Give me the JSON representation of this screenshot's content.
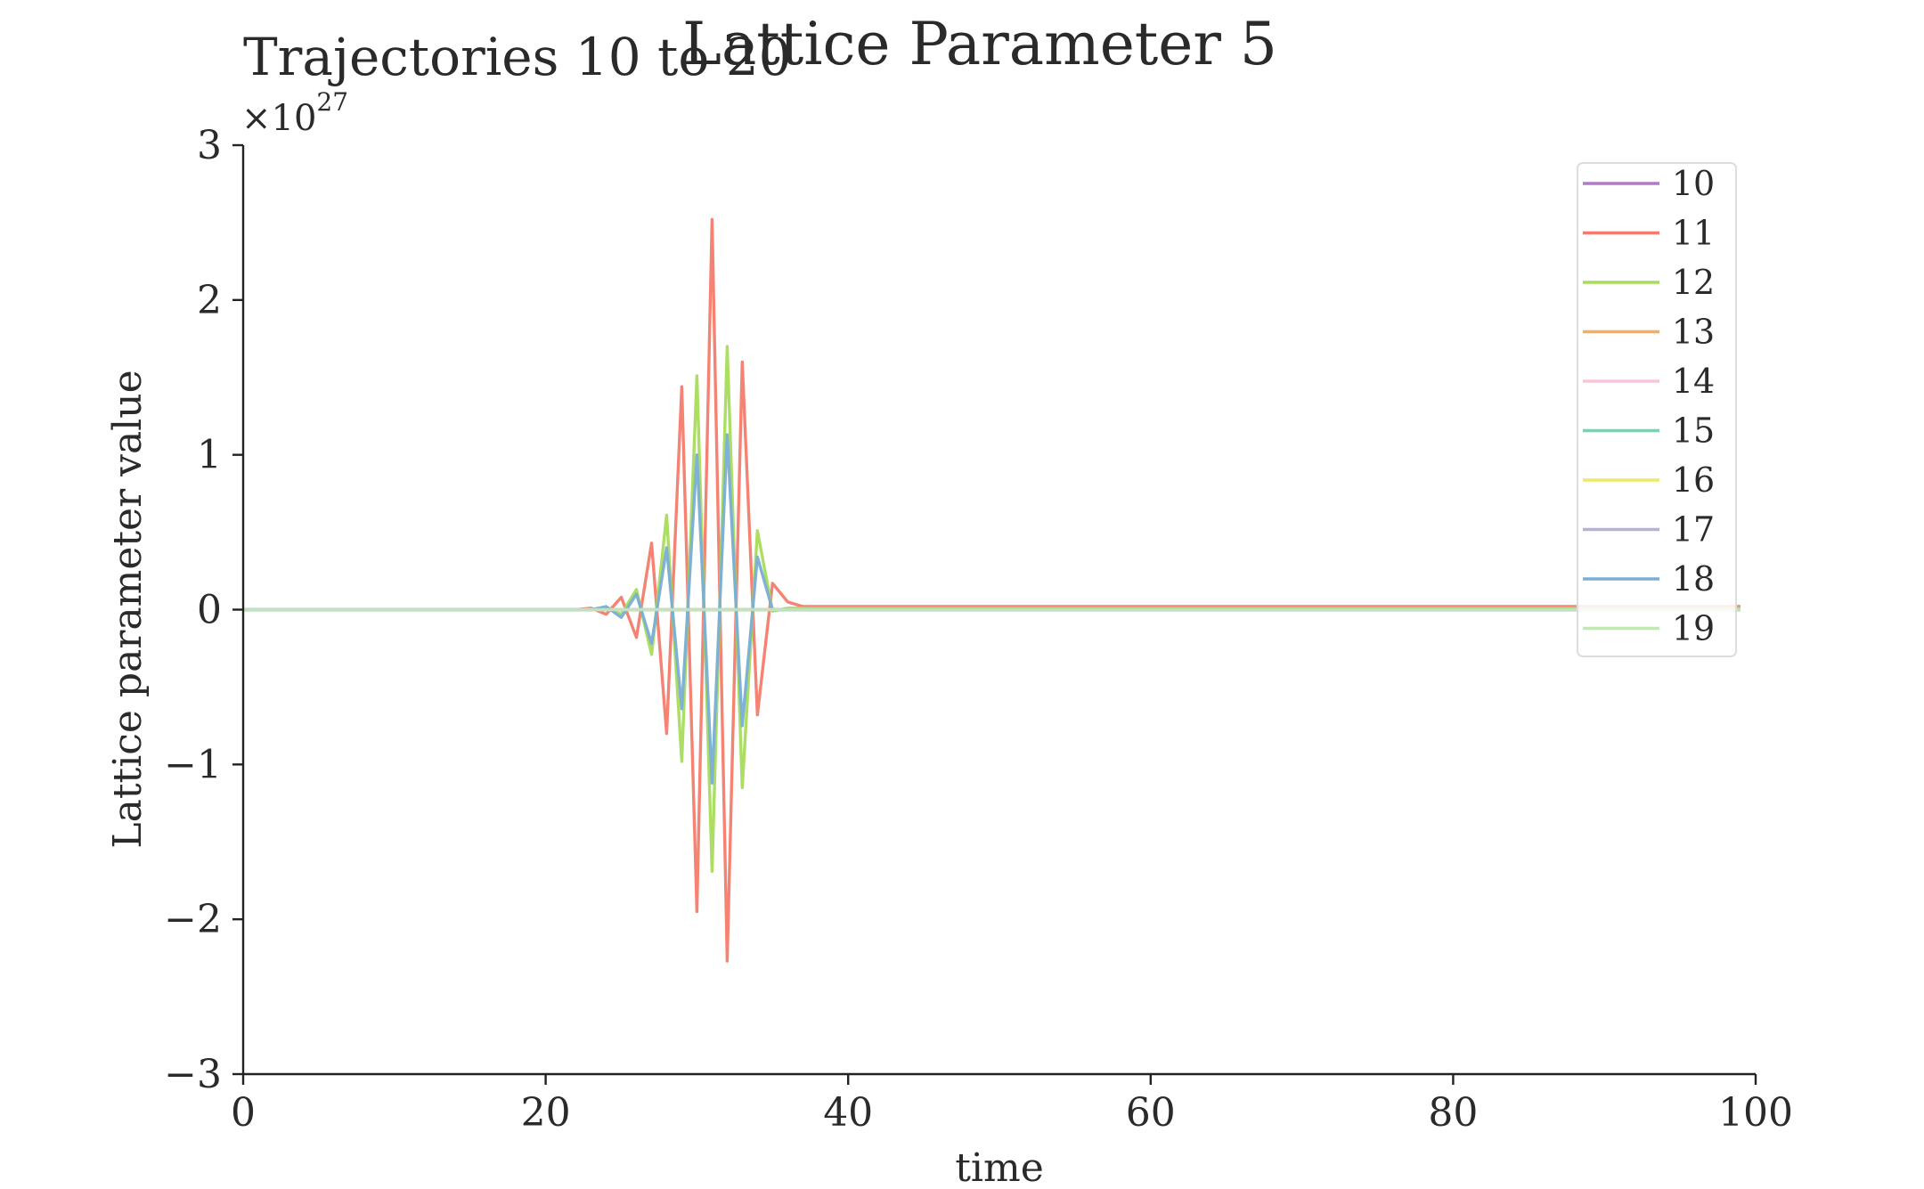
{
  "chart_data": {
    "type": "line",
    "title": "Lattice Parameter 5",
    "subtitle": "Trajectories 10 to 20",
    "xlabel": "time",
    "ylabel": "Lattice parameter value",
    "y_offset_label": "×10",
    "y_offset_exponent": "27",
    "xlim": [
      0,
      100
    ],
    "ylim": [
      -3,
      3
    ],
    "x_ticks": [
      0,
      20,
      40,
      60,
      80,
      100
    ],
    "x_tick_labels": [
      "0",
      "20",
      "40",
      "60",
      "80",
      "100"
    ],
    "y_ticks": [
      -3,
      -2,
      -1,
      0,
      1,
      2,
      3
    ],
    "y_tick_labels": [
      "−3",
      "−2",
      "−1",
      "0",
      "1",
      "2",
      "3"
    ],
    "grid": false,
    "legend_position": "top-right",
    "x": [
      0,
      1,
      2,
      3,
      4,
      5,
      6,
      7,
      8,
      9,
      10,
      11,
      12,
      13,
      14,
      15,
      16,
      17,
      18,
      19,
      20,
      21,
      22,
      23,
      24,
      25,
      26,
      27,
      28,
      29,
      30,
      31,
      32,
      33,
      34,
      35,
      36,
      37,
      38,
      39,
      40,
      41,
      42,
      43,
      44,
      45,
      46,
      47,
      48,
      49,
      50,
      51,
      52,
      53,
      54,
      55,
      56,
      57,
      58,
      59,
      60,
      61,
      62,
      63,
      64,
      65,
      66,
      67,
      68,
      69,
      70,
      71,
      72,
      73,
      74,
      75,
      76,
      77,
      78,
      79,
      80,
      81,
      82,
      83,
      84,
      85,
      86,
      87,
      88,
      89,
      90,
      91,
      92,
      93,
      94,
      95,
      96,
      97,
      98,
      99
    ],
    "series": [
      {
        "name": "10",
        "color": "#b07cc6",
        "peak_start": 0,
        "peak": [],
        "tail": 0
      },
      {
        "name": "11",
        "color": "#f47c6c",
        "peak_start": 23,
        "peak": [
          0.01,
          -0.03,
          0.08,
          -0.18,
          0.43,
          -0.8,
          1.44,
          -1.95,
          2.52,
          -2.27,
          1.6,
          -0.68,
          0.17,
          0.05
        ],
        "tail": 0.02
      },
      {
        "name": "12",
        "color": "#a8dc5c",
        "peak_start": 23,
        "peak": [
          0.0,
          0.01,
          -0.03,
          0.13,
          -0.29,
          0.61,
          -0.98,
          1.51,
          -1.69,
          1.7,
          -1.15,
          0.51,
          -0.01
        ],
        "tail": 0.01
      },
      {
        "name": "13",
        "color": "#f7ad5e",
        "peak_start": 0,
        "peak": [],
        "tail": 0
      },
      {
        "name": "14",
        "color": "#f7c6dc",
        "peak_start": 0,
        "peak": [],
        "tail": 0
      },
      {
        "name": "15",
        "color": "#7fcfb8",
        "peak_start": 0,
        "peak": [],
        "tail": 0
      },
      {
        "name": "16",
        "color": "#eeea66",
        "peak_start": 0,
        "peak": [],
        "tail": 0
      },
      {
        "name": "17",
        "color": "#b9b0d9",
        "peak_start": 0,
        "peak": [],
        "tail": 0
      },
      {
        "name": "18",
        "color": "#7aaed4",
        "peak_start": 24,
        "peak": [
          0.02,
          -0.05,
          0.1,
          -0.22,
          0.4,
          -0.64,
          1.0,
          -1.12,
          1.13,
          -0.75,
          0.34,
          0.0
        ],
        "tail": 0.0
      },
      {
        "name": "19",
        "color": "#c3e6b7",
        "peak_start": 0,
        "peak": [],
        "tail": 0
      }
    ]
  }
}
